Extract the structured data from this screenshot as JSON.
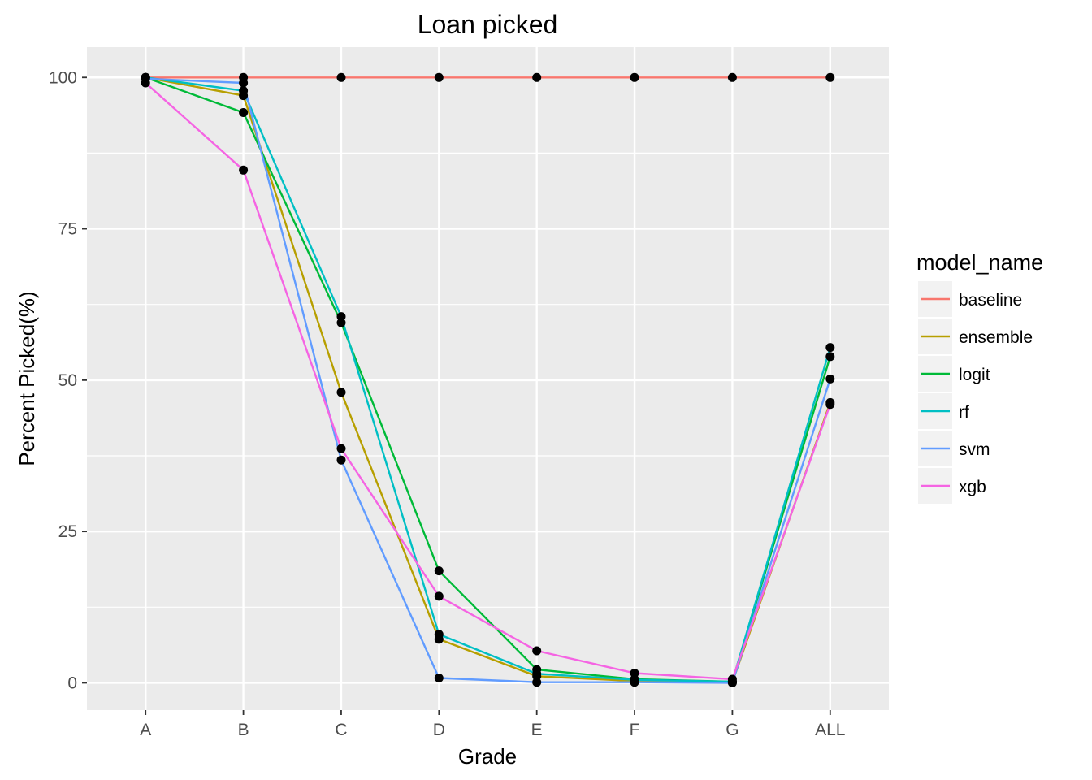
{
  "chart_data": {
    "type": "line",
    "title": "Loan picked",
    "xlabel": "Grade",
    "ylabel": "Percent Picked(%)",
    "categories": [
      "A",
      "B",
      "C",
      "D",
      "E",
      "F",
      "G",
      "ALL"
    ],
    "ylim": [
      -4.5,
      105
    ],
    "yticks": [
      0,
      25,
      50,
      75,
      100
    ],
    "grid": true,
    "legend": {
      "title": "model_name",
      "placement": "right"
    },
    "point_color": "#000000",
    "panel_background": "#ebebeb",
    "series": [
      {
        "name": "baseline",
        "color": "#F8766D",
        "values": [
          100,
          100,
          100,
          100,
          100,
          100,
          100,
          100
        ]
      },
      {
        "name": "ensemble",
        "color": "#B79F00",
        "values": [
          100,
          97,
          48,
          7.2,
          1.1,
          0.3,
          0.1,
          46.3
        ]
      },
      {
        "name": "logit",
        "color": "#00BA38",
        "values": [
          100,
          94.2,
          59.5,
          18.5,
          2.2,
          0.6,
          0.2,
          53.9
        ]
      },
      {
        "name": "rf",
        "color": "#00BFC4",
        "values": [
          100,
          97.8,
          60.5,
          8.0,
          1.5,
          0.5,
          0.2,
          55.4
        ]
      },
      {
        "name": "svm",
        "color": "#619CFF",
        "values": [
          99.8,
          99.1,
          36.8,
          0.8,
          0.1,
          0.1,
          0.0,
          50.2
        ]
      },
      {
        "name": "xgb",
        "color": "#F564E3",
        "values": [
          99.1,
          84.7,
          38.7,
          14.3,
          5.3,
          1.6,
          0.6,
          46.0
        ]
      }
    ]
  }
}
